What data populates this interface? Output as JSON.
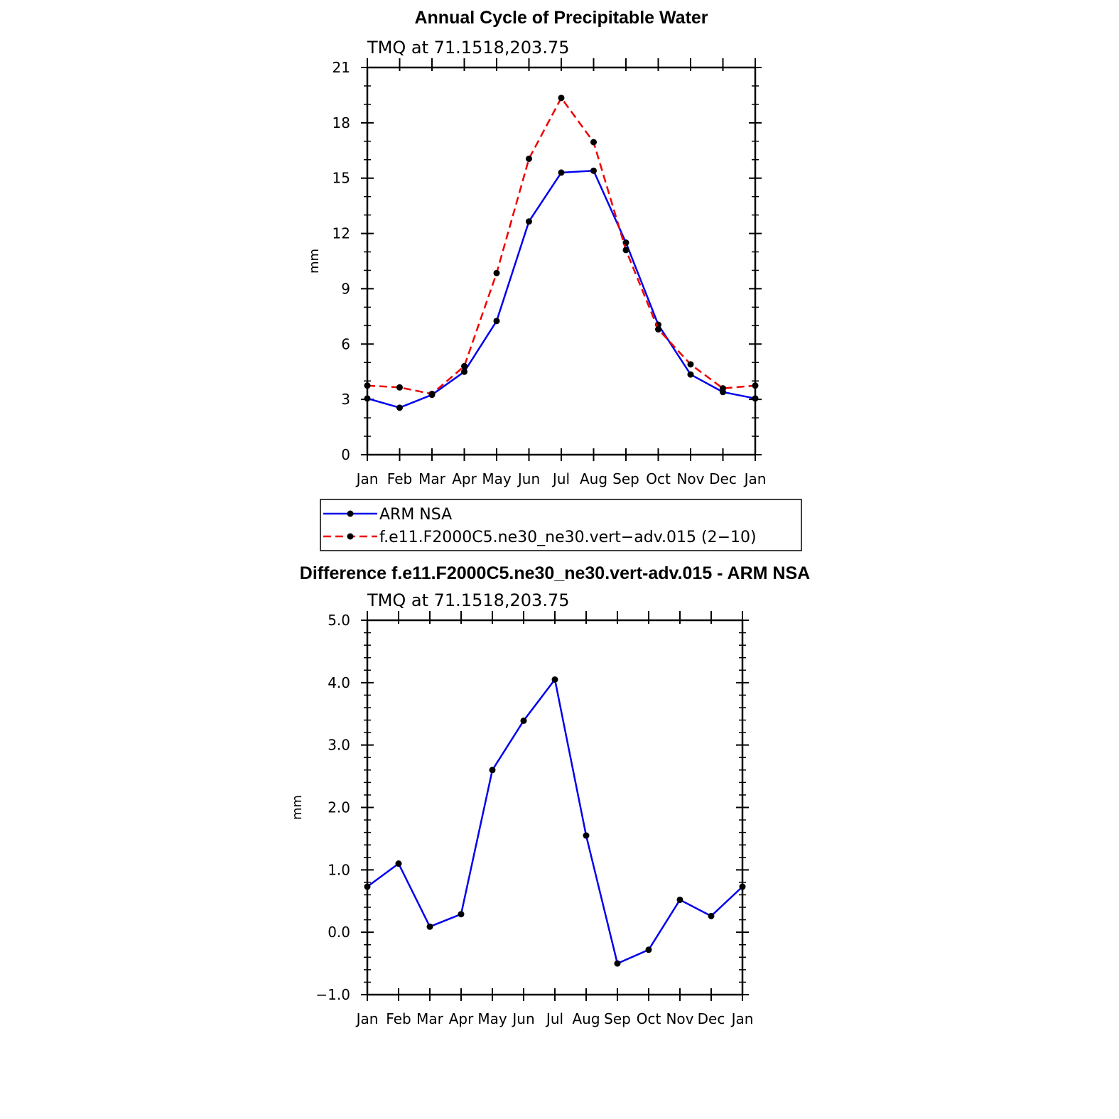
{
  "colors": {
    "obs": "#0000ee",
    "model": "#ee0000",
    "marker": "#000000"
  },
  "chart_data": [
    {
      "type": "line",
      "title": "Annual Cycle of Precipitable Water",
      "subtitle": "TMQ at 71.1518,203.75",
      "xlabel": "",
      "ylabel": "mm",
      "categories": [
        "Jan",
        "Feb",
        "Mar",
        "Apr",
        "May",
        "Jun",
        "Jul",
        "Aug",
        "Sep",
        "Oct",
        "Nov",
        "Dec",
        "Jan"
      ],
      "ylim": [
        0,
        21
      ],
      "yticks": [
        "0",
        "3",
        "6",
        "9",
        "12",
        "15",
        "18",
        "21"
      ],
      "grid": false,
      "series": [
        {
          "name": "ARM NSA",
          "style": "solid",
          "color": "#0000ee",
          "values": [
            3.05,
            2.55,
            3.25,
            4.5,
            7.25,
            12.65,
            15.3,
            15.4,
            11.5,
            7.05,
            4.35,
            3.4,
            3.05
          ]
        },
        {
          "name": "f.e11.F2000C5.ne30_ne30.vert−adv.015 (2−10)",
          "style": "dashed",
          "color": "#ee0000",
          "values": [
            3.75,
            3.65,
            3.3,
            4.8,
            9.85,
            16.05,
            19.35,
            16.95,
            11.1,
            6.8,
            4.9,
            3.6,
            3.75
          ]
        }
      ],
      "legend": {
        "position": "below",
        "entries": [
          "ARM  NSA",
          "f.e11.F2000C5.ne30_ne30.vert−adv.015 (2−10)"
        ]
      }
    },
    {
      "type": "line",
      "title": "Difference f.e11.F2000C5.ne30_ne30.vert-adv.015 - ARM NSA",
      "subtitle": "TMQ at 71.1518,203.75",
      "xlabel": "",
      "ylabel": "mm",
      "categories": [
        "Jan",
        "Feb",
        "Mar",
        "Apr",
        "May",
        "Jun",
        "Jul",
        "Aug",
        "Sep",
        "Oct",
        "Nov",
        "Dec",
        "Jan"
      ],
      "ylim": [
        -1.0,
        5.0
      ],
      "yticks": [
        "−1.0",
        "0.0",
        "1.0",
        "2.0",
        "3.0",
        "4.0",
        "5.0"
      ],
      "grid": false,
      "series": [
        {
          "style": "solid",
          "color": "#0000ee",
          "values": [
            0.73,
            1.1,
            0.09,
            0.29,
            2.6,
            3.39,
            4.05,
            1.55,
            -0.5,
            -0.28,
            0.52,
            0.26,
            0.73
          ]
        }
      ]
    }
  ]
}
